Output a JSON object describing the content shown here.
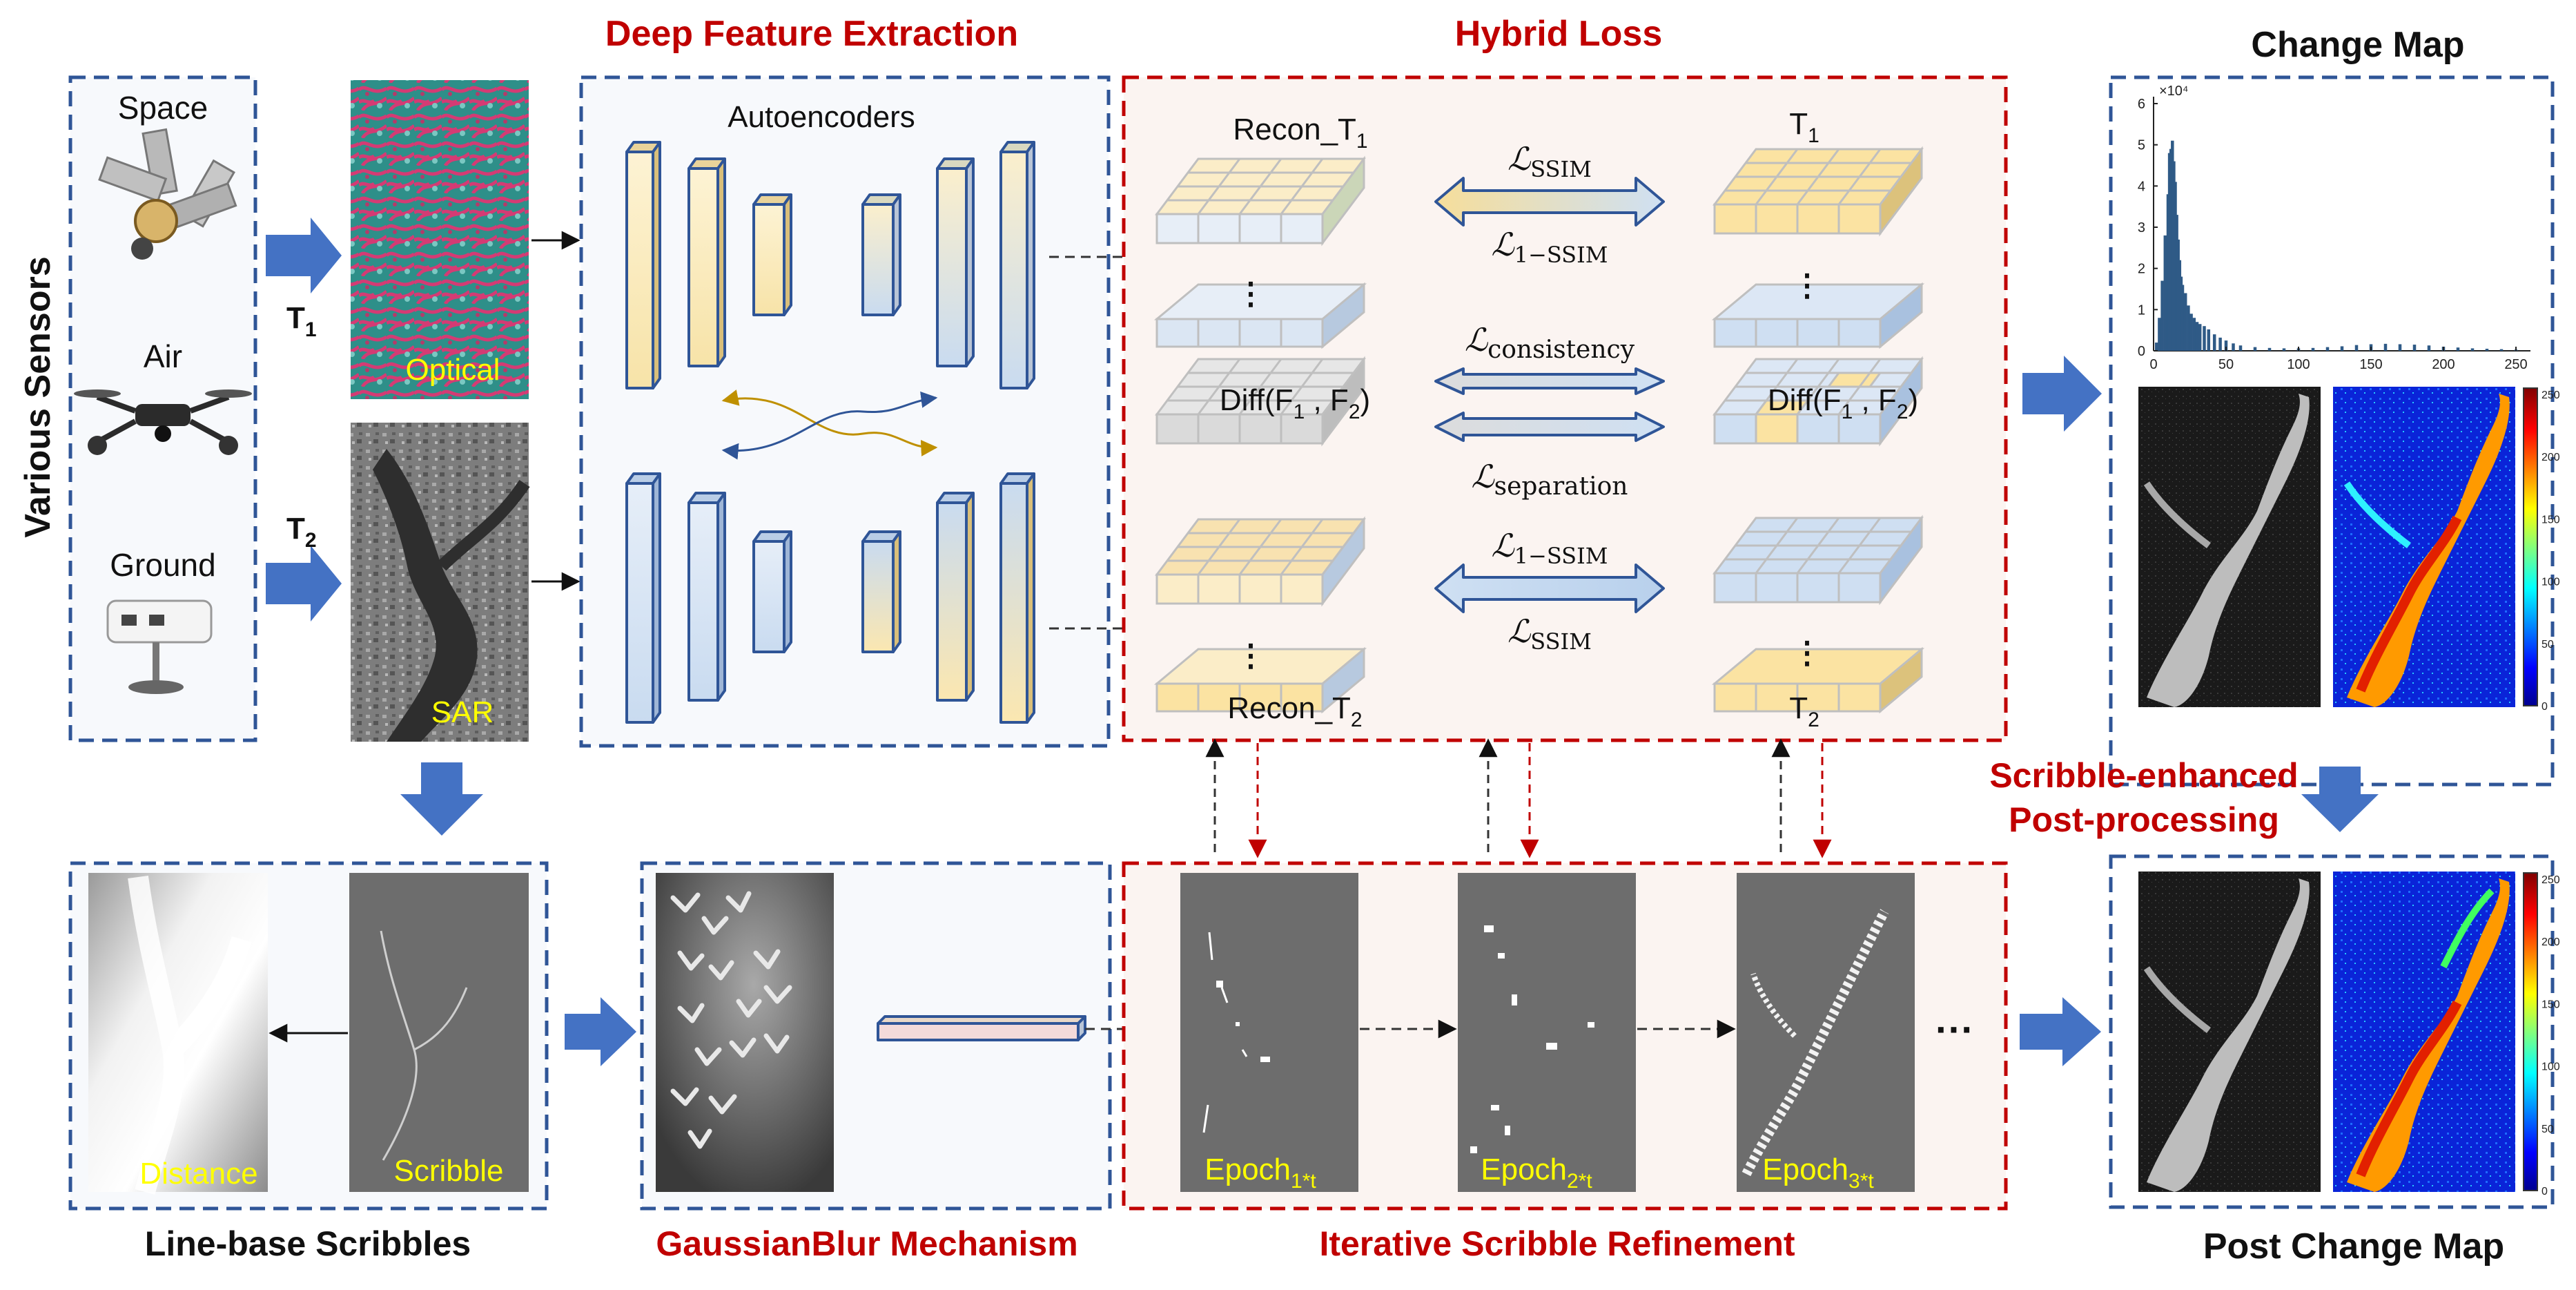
{
  "titles": {
    "various_sensors": "Various Sensors",
    "deep_feature_extraction": "Deep Feature Extraction",
    "hybrid_loss": "Hybrid Loss",
    "change_map": "Change Map",
    "line_base_scribbles": "Line-base Scribbles",
    "gaussian_blur": "GaussianBlur Mechanism",
    "iterative_refinement": "Iterative Scribble Refinement",
    "post_change_map": "Post Change Map",
    "post_processing_line1": "Scribble-enhanced",
    "post_processing_line2": "Post-processing"
  },
  "sensors": {
    "space": "Space",
    "air": "Air",
    "ground": "Ground"
  },
  "time": {
    "t1": "T",
    "t1_sub": "1",
    "t2": "T",
    "t2_sub": "2"
  },
  "images": {
    "optical": "Optical",
    "sar": "SAR",
    "distance": "Distance",
    "scribble": "Scribble"
  },
  "autoencoders": "Autoencoders",
  "loss": {
    "recon_t1": "Recon_T",
    "recon_t1_sub": "1",
    "t1": "T",
    "t1_sub": "1",
    "recon_t2": "Recon_T",
    "recon_t2_sub": "2",
    "t2": "T",
    "t2_sub": "2",
    "diff_left": "Diff(F",
    "diff_mid": " , F",
    "diff_end": ")",
    "diff_sub1": "1",
    "diff_sub2": "2",
    "loss_ssim_top": "SSIM",
    "loss_1ssim_top": "1−SSIM",
    "loss_consistency": "consistency",
    "loss_separation": "separation",
    "loss_1ssim_bottom": "1−SSIM",
    "loss_ssim_bottom": "SSIM",
    "script_l": "ℒ"
  },
  "epochs": [
    {
      "label": "Epoch",
      "sub": "1*t"
    },
    {
      "label": "Epoch",
      "sub": "2*t"
    },
    {
      "label": "Epoch",
      "sub": "3*t"
    }
  ],
  "ellipsis": "···",
  "histogram": {
    "exponent": "×10⁴",
    "y_ticks": [
      "6",
      "5",
      "4",
      "3",
      "2",
      "1",
      "0"
    ],
    "x_ticks": [
      "0",
      "50",
      "100",
      "150",
      "200",
      "250"
    ]
  },
  "colorbar_ticks": [
    "250",
    "200",
    "150",
    "100",
    "50",
    "0"
  ],
  "chart_data": {
    "type": "bar",
    "title": "",
    "xlabel": "",
    "ylabel": "",
    "xlim": [
      0,
      260
    ],
    "ylim": [
      0,
      60000
    ],
    "x": [
      2,
      4,
      6,
      8,
      10,
      11,
      12,
      13,
      14,
      15,
      16,
      17,
      18,
      19,
      20,
      22,
      24,
      26,
      28,
      30,
      32,
      35,
      38,
      42,
      46,
      50,
      55,
      60,
      70,
      80,
      90,
      100,
      110,
      120,
      130,
      140,
      150,
      160,
      170,
      180,
      190,
      200,
      210,
      220,
      230,
      240,
      250
    ],
    "values": [
      2000,
      8000,
      17000,
      28000,
      38000,
      48000,
      49000,
      51000,
      46000,
      41000,
      33000,
      27000,
      22000,
      18000,
      16000,
      14000,
      11000,
      9000,
      8000,
      7000,
      6500,
      6000,
      5200,
      4000,
      3200,
      2500,
      1800,
      1300,
      900,
      700,
      600,
      600,
      700,
      900,
      1100,
      1400,
      1600,
      1700,
      1600,
      1500,
      1300,
      1000,
      800,
      600,
      500,
      400,
      300
    ],
    "colors": {
      "bars": "#2f5a86",
      "axis": "#222222"
    }
  },
  "colors": {
    "blue_border": "#2f5597",
    "red_border": "#c00000",
    "red_text": "#c00000",
    "arrow_blue": "#4472c4",
    "yellow_label": "#ffff00"
  }
}
